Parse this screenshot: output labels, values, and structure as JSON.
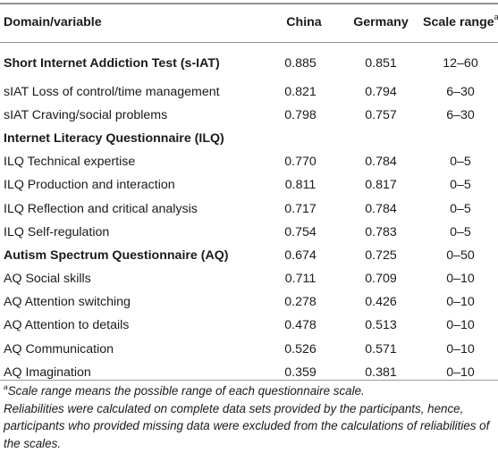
{
  "table": {
    "headers": {
      "domain": "Domain/variable",
      "china": "China",
      "germany": "Germany",
      "scale_range": "Scale range",
      "scale_range_sup": "a"
    },
    "rows": [
      {
        "label": "Short Internet Addiction Test (s-IAT)",
        "china": "0.885",
        "germany": "0.851",
        "range": "12–60",
        "bold": true
      },
      {
        "label": "sIAT Loss of control/time management",
        "china": "0.821",
        "germany": "0.794",
        "range": "6–30",
        "bold": false
      },
      {
        "label": "sIAT Craving/social problems",
        "china": "0.798",
        "germany": "0.757",
        "range": "6–30",
        "bold": false
      },
      {
        "label": "Internet Literacy Questionnaire (ILQ)",
        "china": "",
        "germany": "",
        "range": "",
        "bold": true
      },
      {
        "label": "ILQ Technical expertise",
        "china": "0.770",
        "germany": "0.784",
        "range": "0–5",
        "bold": false
      },
      {
        "label": "ILQ Production and interaction",
        "china": "0.811",
        "germany": "0.817",
        "range": "0–5",
        "bold": false
      },
      {
        "label": "ILQ Reflection and critical analysis",
        "china": "0.717",
        "germany": "0.784",
        "range": "0–5",
        "bold": false
      },
      {
        "label": "ILQ Self-regulation",
        "china": "0.754",
        "germany": "0.783",
        "range": "0–5",
        "bold": false
      },
      {
        "label": "Autism Spectrum Questionnaire (AQ)",
        "china": "0.674",
        "germany": "0.725",
        "range": "0–50",
        "bold": true
      },
      {
        "label": "AQ Social skills",
        "china": "0.711",
        "germany": "0.709",
        "range": "0–10",
        "bold": false
      },
      {
        "label": "AQ Attention switching",
        "china": "0.278",
        "germany": "0.426",
        "range": "0–10",
        "bold": false
      },
      {
        "label": "AQ Attention to details",
        "china": "0.478",
        "germany": "0.513",
        "range": "0–10",
        "bold": false
      },
      {
        "label": "AQ Communication",
        "china": "0.526",
        "germany": "0.571",
        "range": "0–10",
        "bold": false
      },
      {
        "label": "AQ Imagination",
        "china": "0.359",
        "germany": "0.381",
        "range": "0–10",
        "bold": false
      }
    ]
  },
  "footnotes": {
    "a_marker": "a",
    "a_text": "Scale range means the possible range of each questionnaire scale.",
    "reliability_note": "Reliabilities were calculated on complete data sets provided by the participants, hence, participants who provided missing data were excluded from the calculations of reliabilities of the scales."
  }
}
